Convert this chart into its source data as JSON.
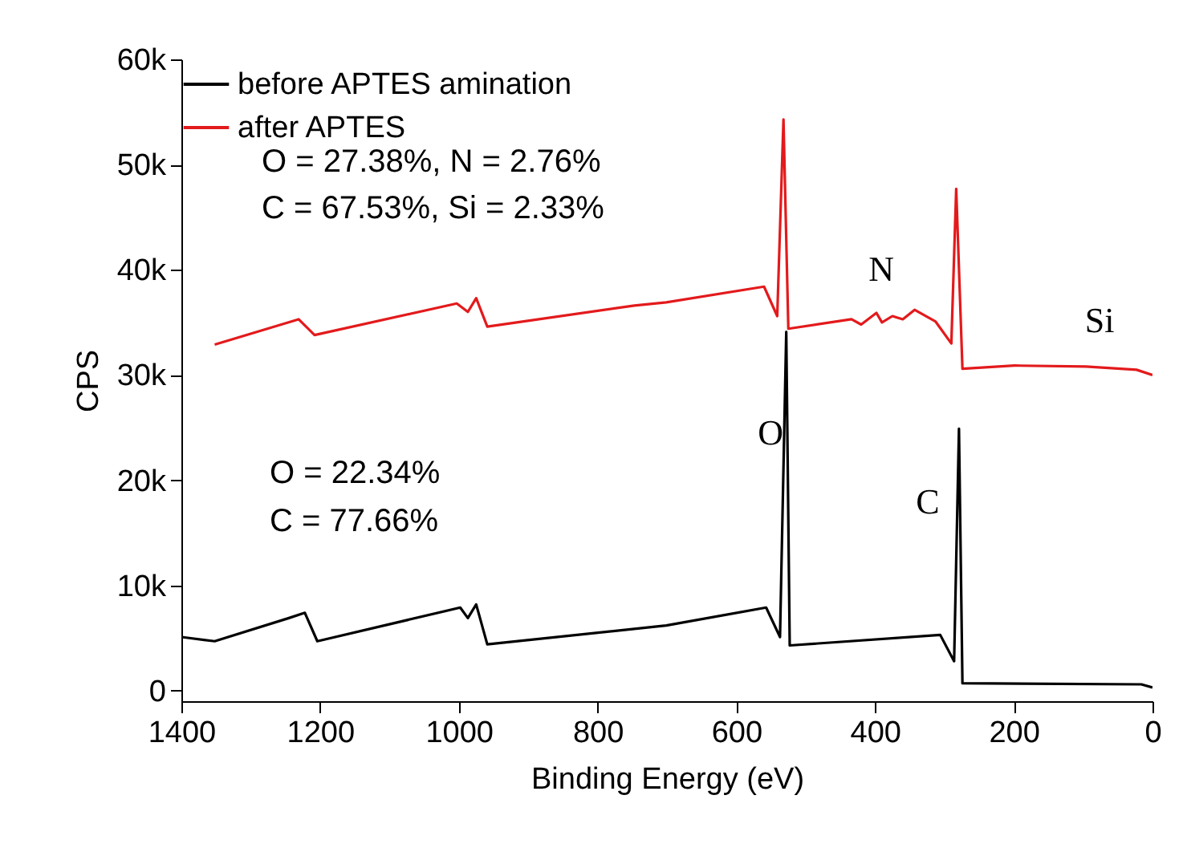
{
  "chart_data": {
    "type": "line",
    "xlabel": "Binding Energy (eV)",
    "ylabel": "CPS",
    "xlim": [
      1400,
      0
    ],
    "xticks": [
      1400,
      1200,
      1000,
      800,
      600,
      400,
      200,
      0
    ],
    "ylim": [
      -1000,
      60000
    ],
    "yticks": [
      0,
      {
        "value": 10000,
        "label": "10k"
      },
      {
        "value": 20000,
        "label": "20k"
      },
      {
        "value": 30000,
        "label": "30k"
      },
      {
        "value": 40000,
        "label": "40k"
      },
      {
        "value": 50000,
        "label": "50k"
      },
      {
        "value": 60000,
        "label": "60k"
      }
    ],
    "legend": "top left",
    "grid": false,
    "marker": "none",
    "line_style": "solid",
    "series": [
      {
        "name": "before APTES amination",
        "color": "#000000",
        "x": [
          1400,
          1352,
          1245,
          1222,
          1204,
          998,
          987,
          975,
          959,
          701,
          557,
          537,
          528,
          523,
          306,
          286,
          279,
          274,
          16,
          0
        ],
        "values": [
          5100,
          4700,
          6900,
          7400,
          4700,
          7900,
          6900,
          8200,
          4400,
          6200,
          7900,
          5100,
          34100,
          4300,
          5300,
          2800,
          24900,
          700,
          600,
          300
        ]
      },
      {
        "name": "after APTES",
        "color": "#e31a1c",
        "x": [
          1352,
          1231,
          1208,
          1003,
          987,
          975,
          959,
          747,
          701,
          560,
          541,
          532,
          525,
          434,
          420,
          398,
          390,
          375,
          360,
          343,
          313,
          290,
          283,
          274,
          199,
          96,
          23,
          0
        ],
        "values": [
          32900,
          35300,
          33800,
          36800,
          36000,
          37300,
          34600,
          36600,
          36900,
          38400,
          35600,
          54300,
          34400,
          35300,
          34800,
          35900,
          35000,
          35600,
          35300,
          36200,
          35100,
          33000,
          47700,
          30600,
          30900,
          30800,
          30500,
          30000
        ]
      }
    ],
    "annotations": [
      "O",
      "C",
      "N",
      "Si",
      "O = 27.38%, N = 2.76%",
      "C = 67.53%, Si = 2.33%",
      "O = 22.34%",
      "C = 77.66%"
    ]
  }
}
